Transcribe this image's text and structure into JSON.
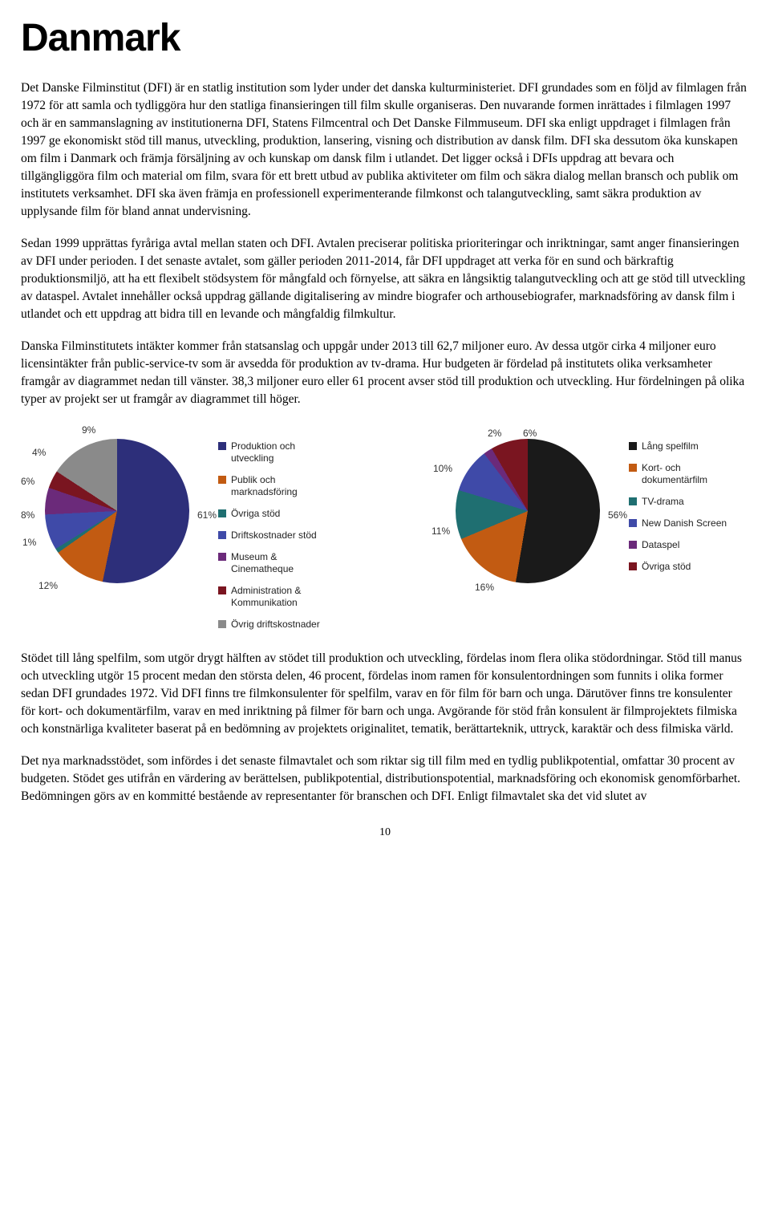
{
  "title": "Danmark",
  "paragraphs": {
    "p1": "Det Danske Filminstitut (DFI) är en statlig institution som lyder under det danska kulturministeriet. DFI grundades som en följd av filmlagen från 1972 för att samla och tydliggöra hur den statliga finansieringen till film skulle organiseras. Den nuvarande formen inrättades i filmlagen 1997 och är en sammanslagning av institutionerna DFI, Statens Filmcentral och Det Danske Filmmuseum. DFI ska enligt uppdraget i filmlagen från 1997 ge ekonomiskt stöd till manus, utveckling, produktion, lansering, visning och distribution av dansk film. DFI ska dessutom öka kunskapen om film i Danmark och främja försäljning av och kunskap om dansk film i utlandet. Det ligger också i DFIs uppdrag att bevara och tillgängliggöra film och material om film, svara för ett brett utbud av publika aktiviteter om film och säkra dialog mellan bransch och publik om institutets verksamhet. DFI ska även främja en professionell experimenterande filmkonst och talangutveckling, samt säkra produktion av upplysande film för bland annat undervisning.",
    "p2": "Sedan 1999 upprättas fyråriga avtal mellan staten och DFI. Avtalen preciserar politiska prioriteringar och inriktningar, samt anger finansieringen av DFI under perioden. I det senaste avtalet, som gäller perioden 2011-2014, får DFI uppdraget att verka för en sund och bärkraftig produktionsmiljö, att ha ett flexibelt stödsystem för mångfald och förnyelse, att säkra en långsiktig talangutveckling och att ge stöd till utveckling av dataspel. Avtalet innehåller också uppdrag gällande digitalisering av mindre biografer och arthousebiografer, marknadsföring av dansk film i utlandet och ett uppdrag att bidra till en levande och mångfaldig filmkultur.",
    "p3": "Danska Filminstitutets intäkter kommer från statsanslag och uppgår under 2013 till 62,7 miljoner euro. Av dessa utgör cirka 4 miljoner euro licensintäkter från public-service-tv som är avsedda för produktion av tv-drama. Hur budgeten är fördelad på institutets olika verksamheter framgår av diagrammet nedan till vänster. 38,3 miljoner euro eller 61 procent avser stöd till produktion och utveckling. Hur fördelningen på olika typer av projekt ser ut framgår av diagrammet till höger.",
    "p4": "Stödet till lång spelfilm, som utgör drygt hälften av stödet till produktion och utveckling, fördelas inom flera olika stödordningar. Stöd till manus och utveckling utgör 15 procent medan den största delen, 46 procent, fördelas inom ramen för konsulentordningen som funnits i olika former sedan DFI grundades 1972. Vid DFI finns tre filmkonsulenter för spelfilm, varav en för film för barn och unga. Därutöver finns tre konsulenter för kort- och dokumentärfilm, varav en med inriktning på filmer för barn och unga. Avgörande för stöd från konsulent är filmprojektets filmiska och konstnärliga kvaliteter baserat på en bedömning av projektets originalitet, tematik, berättarteknik, uttryck, karaktär och dess filmiska värld.",
    "p5": "Det nya marknadsstödet, som infördes i det senaste filmavtalet och som riktar sig till film med en tydlig publikpotential, omfattar 30 procent av budgeten. Stödet ges utifrån en värdering av berättelsen, publikpotential, distributionspotential, marknadsföring och ekonomisk genomförbarhet. Bedömningen görs av en kommitté bestående av representanter för branschen och DFI. Enligt filmavtalet ska det vid slutet av"
  },
  "chart1": {
    "type": "pie",
    "slices": [
      {
        "label": "Produktion och utveckling",
        "pct": 61,
        "color": "#2d2f7a"
      },
      {
        "label": "Publik och marknadsföring",
        "pct": 12,
        "color": "#c25b12"
      },
      {
        "label": "Övriga stöd",
        "pct": 1,
        "color": "#1f6f71"
      },
      {
        "label": "Driftskostnader stöd",
        "pct": 8,
        "color": "#3f4aa8"
      },
      {
        "label": "Museum & Cinematheque",
        "pct": 6,
        "color": "#6b2a7a"
      },
      {
        "label": "Administration & Kommunikation",
        "pct": 4,
        "color": "#7a1520"
      },
      {
        "label": "Övrig driftskostnader",
        "pct": 9,
        "color": "#8a8a8a"
      }
    ],
    "callouts": [
      "61%",
      "12%",
      "1%",
      "8%",
      "6%",
      "4%",
      "9%"
    ],
    "legend_fontsize": 12,
    "label_fontsize": 12,
    "background": "#ffffff"
  },
  "chart2": {
    "type": "pie",
    "slices": [
      {
        "label": "Lång spelfilm",
        "pct": 56,
        "color": "#1a1a1a"
      },
      {
        "label": "Kort- och dokumentärfilm",
        "pct": 16,
        "color": "#c25b12"
      },
      {
        "label": "TV-drama",
        "pct": 11,
        "color": "#1f6f71"
      },
      {
        "label": "New Danish Screen",
        "pct": 10,
        "color": "#3f4aa8"
      },
      {
        "label": "Dataspel",
        "pct": 2,
        "color": "#6b2a7a"
      },
      {
        "label": "Övriga stöd",
        "pct": 6,
        "color": "#7a1520"
      }
    ],
    "callouts": [
      "56%",
      "16%",
      "11%",
      "10%",
      "2%",
      "6%"
    ],
    "legend_fontsize": 12,
    "label_fontsize": 12,
    "background": "#ffffff"
  },
  "page_number": "10"
}
